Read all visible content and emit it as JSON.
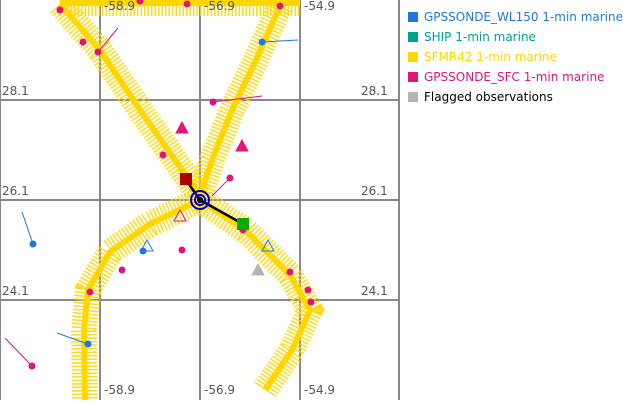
{
  "map": {
    "lon_labels": [
      "-58.9",
      "-56.9",
      "-54.9"
    ],
    "lat_labels": [
      "28.1",
      "26.1",
      "24.1"
    ]
  },
  "legend": [
    {
      "label": "GPSSONDE_WL150 1-min marine",
      "color": "#1e78dc"
    },
    {
      "label": "SHIP 1-min marine",
      "color": "#009f8f"
    },
    {
      "label": "SFMR42 1-min marine",
      "color": "#ffd700"
    },
    {
      "label": "GPSSONDE_SFC 1-min marine",
      "color": "#e0157a"
    },
    {
      "label": "Flagged observations",
      "color": "#b4b4b4",
      "text_color": "#000000"
    }
  ],
  "colors": {
    "grid": "#888888",
    "ship_marker": "#00aa00",
    "position_marker": "#aa0000",
    "center_ring": "#0000dd"
  }
}
